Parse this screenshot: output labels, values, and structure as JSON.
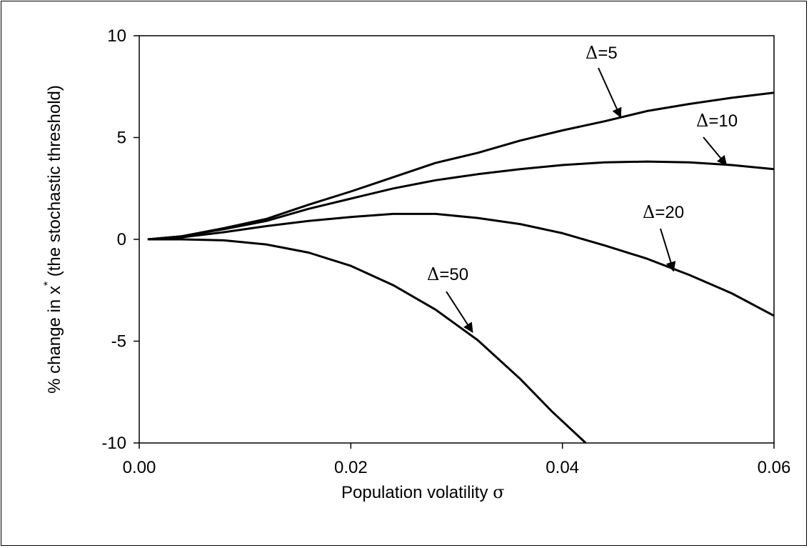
{
  "chart_data": {
    "type": "line",
    "title": "",
    "xlabel": {
      "text": "Population volatility ",
      "symbol": "σ"
    },
    "ylabel": {
      "prefix": "% change in  x",
      "superscript": "*",
      "suffix": " (the stochastic threshold)"
    },
    "xlim": [
      0.0,
      0.06
    ],
    "ylim": [
      -10,
      10
    ],
    "x_ticks": [
      0.0,
      0.02,
      0.04,
      0.06
    ],
    "x_tick_labels": [
      "0.00",
      "0.02",
      "0.04",
      "0.06"
    ],
    "y_ticks": [
      10,
      5,
      0,
      -5,
      -10
    ],
    "y_tick_labels": [
      "10",
      "5",
      "0",
      "-5",
      "-10"
    ],
    "grid": false,
    "legend": "none",
    "line_color": "#000000",
    "series": [
      {
        "label_symbol": "Δ",
        "label_text": "=5",
        "arrow_to": [
          0.0455,
          6.0
        ],
        "points": [
          [
            0.0008,
            0.0
          ],
          [
            0.004,
            0.15
          ],
          [
            0.008,
            0.55
          ],
          [
            0.012,
            1.0
          ],
          [
            0.016,
            1.7
          ],
          [
            0.02,
            2.35
          ],
          [
            0.024,
            3.05
          ],
          [
            0.028,
            3.75
          ],
          [
            0.032,
            4.25
          ],
          [
            0.036,
            4.85
          ],
          [
            0.04,
            5.35
          ],
          [
            0.044,
            5.8
          ],
          [
            0.048,
            6.3
          ],
          [
            0.052,
            6.65
          ],
          [
            0.056,
            6.95
          ],
          [
            0.06,
            7.2
          ]
        ]
      },
      {
        "label_symbol": "Δ",
        "label_text": "=10",
        "arrow_to": [
          0.0555,
          3.65
        ],
        "points": [
          [
            0.0008,
            0.0
          ],
          [
            0.004,
            0.15
          ],
          [
            0.008,
            0.5
          ],
          [
            0.012,
            0.9
          ],
          [
            0.016,
            1.5
          ],
          [
            0.02,
            2.0
          ],
          [
            0.024,
            2.5
          ],
          [
            0.028,
            2.9
          ],
          [
            0.032,
            3.2
          ],
          [
            0.036,
            3.45
          ],
          [
            0.04,
            3.65
          ],
          [
            0.044,
            3.78
          ],
          [
            0.048,
            3.82
          ],
          [
            0.052,
            3.78
          ],
          [
            0.056,
            3.65
          ],
          [
            0.06,
            3.45
          ]
        ]
      },
      {
        "label_symbol": "Δ",
        "label_text": "=20",
        "arrow_to": [
          0.0505,
          -1.55
        ],
        "points": [
          [
            0.0008,
            0.0
          ],
          [
            0.004,
            0.1
          ],
          [
            0.008,
            0.35
          ],
          [
            0.012,
            0.65
          ],
          [
            0.016,
            0.9
          ],
          [
            0.02,
            1.1
          ],
          [
            0.024,
            1.25
          ],
          [
            0.028,
            1.25
          ],
          [
            0.032,
            1.05
          ],
          [
            0.036,
            0.75
          ],
          [
            0.04,
            0.3
          ],
          [
            0.044,
            -0.3
          ],
          [
            0.048,
            -0.95
          ],
          [
            0.052,
            -1.75
          ],
          [
            0.056,
            -2.65
          ],
          [
            0.06,
            -3.75
          ]
        ]
      },
      {
        "label_symbol": "Δ",
        "label_text": "=50",
        "arrow_to": [
          0.0315,
          -4.55
        ],
        "points": [
          [
            0.0008,
            0.0
          ],
          [
            0.004,
            0.0
          ],
          [
            0.008,
            -0.05
          ],
          [
            0.012,
            -0.25
          ],
          [
            0.016,
            -0.65
          ],
          [
            0.02,
            -1.3
          ],
          [
            0.024,
            -2.25
          ],
          [
            0.028,
            -3.45
          ],
          [
            0.032,
            -4.95
          ],
          [
            0.036,
            -6.85
          ],
          [
            0.039,
            -8.45
          ],
          [
            0.0422,
            -10.0
          ]
        ]
      }
    ]
  }
}
